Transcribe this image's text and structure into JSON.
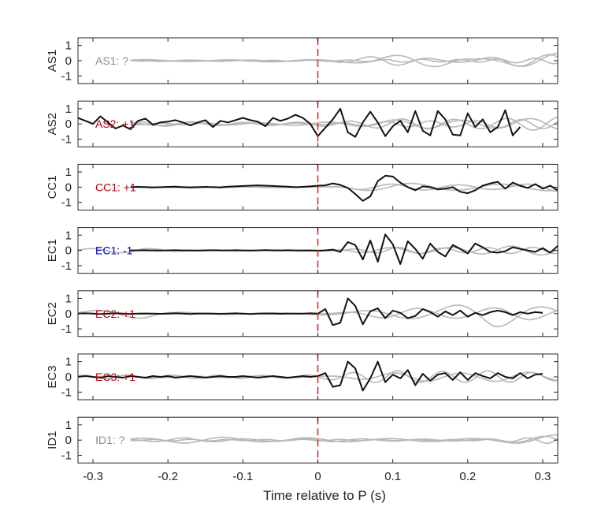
{
  "chart_data": {
    "type": "line",
    "xlabel": "Time relative to P (s)",
    "xlim": [
      -0.32,
      0.32
    ],
    "xticks": [
      -0.3,
      -0.2,
      -0.1,
      0,
      0.1,
      0.2,
      0.3
    ],
    "xtick_labels": [
      "-0.3",
      "-0.2",
      "-0.1",
      "0",
      "0.1",
      "0.2",
      "0.3"
    ],
    "ylim": [
      -1.5,
      1.5
    ],
    "yticks": [
      -1,
      0,
      1
    ],
    "ytick_labels": [
      "-1",
      "0",
      "1"
    ],
    "marker_line": {
      "x": 0,
      "color": "#e41a1c",
      "style": "dashed"
    },
    "colors": {
      "gray": "#b8b8b8",
      "black": "#111111",
      "pos": "#b0000a",
      "neg": "#0000b4",
      "unknown": "#8c8c8c"
    },
    "panels": [
      {
        "ylabel": "AS1",
        "annotation": "AS1: ?",
        "annotation_color": "unknown",
        "waveform": null,
        "gray": [
          {
            "x0": -0.25,
            "amp": [
              0.08,
              0.06,
              0.05,
              0.05,
              0.06,
              0.08,
              0.06,
              0.08,
              0.15,
              0.3,
              0.45,
              0.35,
              0.1,
              0.2,
              0.45,
              0.5
            ],
            "per": 0.11,
            "ph": 0.3
          },
          {
            "x0": -0.25,
            "amp": [
              0.04,
              0.04,
              0.04,
              0.04,
              0.04,
              0.05,
              0.05,
              0.05,
              0.2,
              0.35,
              0.2,
              0.1,
              0.1,
              0.3,
              0.4,
              0.4
            ],
            "per": 0.08,
            "ph": 1.7
          },
          {
            "x0": -0.25,
            "amp": [
              0.03,
              0.03,
              0.03,
              0.03,
              0.03,
              0.03,
              0.03,
              0.03,
              0.05,
              0.08,
              0.1,
              0.08,
              0.08,
              0.12,
              0.15,
              0.2
            ],
            "per": 0.05,
            "ph": 2.9
          }
        ]
      },
      {
        "ylabel": "AS2",
        "annotation": "AS2: +1",
        "annotation_color": "pos",
        "waveform": {
          "x0": -0.32,
          "dx": 0.01,
          "y": [
            0.4,
            0.2,
            0.0,
            0.5,
            0.1,
            -0.3,
            -0.1,
            -0.35,
            0.2,
            0.35,
            -0.05,
            0.1,
            0.15,
            0.25,
            0.1,
            -0.1,
            0.1,
            0.25,
            -0.2,
            0.2,
            0.1,
            0.25,
            0.4,
            0.25,
            0.15,
            -0.15,
            0.4,
            0.2,
            0.35,
            0.6,
            0.4,
            0.0,
            -0.8,
            -0.25,
            0.3,
            1.0,
            -0.55,
            -0.85,
            0.1,
            0.8,
            0.1,
            -0.8,
            -0.15,
            0.2,
            -0.55,
            0.85,
            -0.45,
            -0.75,
            0.85,
            0.3,
            -0.7,
            -0.75,
            0.7,
            -0.2,
            0.3,
            -0.55,
            -0.2,
            0.9,
            -0.75,
            -0.2
          ]
        },
        "gray": [
          {
            "x0": -0.25,
            "amp": [
              0.1,
              0.15,
              0.15,
              0.1,
              0.1,
              0.1,
              0.12,
              0.15,
              0.2,
              0.3,
              0.35,
              0.3,
              0.3,
              0.35,
              0.4,
              0.45
            ],
            "per": 0.07,
            "ph": 0.5
          },
          {
            "x0": -0.25,
            "amp": [
              0.08,
              0.1,
              0.1,
              0.08,
              0.08,
              0.08,
              0.1,
              0.12,
              0.15,
              0.25,
              0.3,
              0.25,
              0.25,
              0.3,
              0.35,
              0.4
            ],
            "per": 0.09,
            "ph": 2.1
          },
          {
            "x0": -0.25,
            "amp": [
              0.05,
              0.06,
              0.06,
              0.05,
              0.05,
              0.05,
              0.05,
              0.06,
              0.1,
              0.15,
              0.2,
              0.2,
              0.2,
              0.25,
              0.3,
              0.3
            ],
            "per": 0.06,
            "ph": 3.6
          }
        ]
      },
      {
        "ylabel": "CC1",
        "annotation": "CC1: +1",
        "annotation_color": "pos",
        "waveform": {
          "x0": -0.25,
          "dx": 0.01,
          "y": [
            0.0,
            0.02,
            0.0,
            -0.02,
            0.0,
            0.02,
            0.03,
            0.0,
            -0.02,
            0.0,
            0.02,
            0.0,
            -0.02,
            0.03,
            0.05,
            0.08,
            0.1,
            0.12,
            0.1,
            0.08,
            0.05,
            0.03,
            0.0,
            0.02,
            0.05,
            0.1,
            0.12,
            0.25,
            0.15,
            -0.05,
            -0.45,
            -0.9,
            -0.6,
            0.4,
            0.75,
            0.7,
            0.3,
            0.0,
            -0.2,
            0.05,
            0.0,
            -0.15,
            -0.1,
            0.0,
            -0.3,
            -0.4,
            -0.2,
            0.1,
            0.25,
            0.35,
            -0.1,
            0.3,
            0.1,
            -0.05,
            0.2,
            -0.1,
            0.1,
            -0.2,
            0.05,
            0.0,
            -0.3,
            -0.15
          ]
        },
        "gray": [
          {
            "x0": -0.25,
            "amp": [
              0.03,
              0.03,
              0.03,
              0.03,
              0.03,
              0.03,
              0.03,
              0.03,
              0.2,
              0.25,
              0.25,
              0.2,
              0.2,
              0.2,
              0.2,
              0.25
            ],
            "per": 0.12,
            "ph": 0.8
          },
          {
            "x0": -0.25,
            "amp": [
              0.02,
              0.02,
              0.02,
              0.02,
              0.02,
              0.02,
              0.02,
              0.02,
              0.15,
              0.2,
              0.2,
              0.15,
              0.15,
              0.15,
              0.2,
              0.3
            ],
            "per": 0.09,
            "ph": 2.4
          }
        ]
      },
      {
        "ylabel": "EC1",
        "annotation": "EC1: -1",
        "annotation_color": "neg",
        "waveform": {
          "x0": -0.25,
          "dx": 0.01,
          "y": [
            0.0,
            0.0,
            0.01,
            0.0,
            -0.01,
            0.0,
            0.01,
            0.0,
            0.0,
            -0.01,
            0.0,
            0.01,
            0.0,
            0.0,
            0.01,
            0.0,
            -0.01,
            0.0,
            0.02,
            0.0,
            0.0,
            0.01,
            0.0,
            -0.01,
            0.0,
            -0.02,
            0.0,
            0.05,
            -0.1,
            0.55,
            0.35,
            -0.6,
            0.65,
            -0.75,
            1.05,
            0.4,
            -0.9,
            0.6,
            0.1,
            -0.55,
            0.45,
            -0.1,
            -0.4,
            0.35,
            0.1,
            -0.2,
            0.45,
            0.2,
            -0.1,
            -0.15,
            -0.05,
            0.2,
            0.1,
            0.0,
            -0.1,
            0.15,
            -0.15,
            0.3,
            0.45,
            -0.25,
            -0.3
          ]
        },
        "gray": [
          {
            "x0": -0.32,
            "amp": [
              0.1,
              0.15,
              0.15,
              0.05,
              0.03,
              0.03,
              0.03,
              0.03,
              0.03,
              0.15,
              0.2,
              0.2,
              0.2,
              0.25,
              0.3,
              0.3
            ],
            "per": 0.08,
            "ph": 0.2
          },
          {
            "x0": -0.25,
            "amp": [
              0.02,
              0.02,
              0.02,
              0.02,
              0.02,
              0.02,
              0.02,
              0.02,
              0.1,
              0.2,
              0.2,
              0.15,
              0.15,
              0.2,
              0.2,
              0.2
            ],
            "per": 0.06,
            "ph": 1.9
          }
        ]
      },
      {
        "ylabel": "EC2",
        "annotation": "EC2: +1",
        "annotation_color": "pos",
        "waveform": {
          "x0": -0.32,
          "dx": 0.01,
          "y": [
            0.0,
            0.02,
            0.0,
            -0.02,
            0.0,
            0.02,
            0.0,
            -0.02,
            0.0,
            0.01,
            0.0,
            -0.01,
            0.0,
            0.02,
            0.0,
            -0.02,
            0.0,
            0.01,
            0.0,
            -0.01,
            0.0,
            0.02,
            0.0,
            -0.02,
            0.0,
            0.01,
            0.0,
            -0.01,
            0.0,
            0.0,
            0.0,
            0.02,
            0.0,
            0.3,
            -0.75,
            -0.6,
            1.0,
            0.5,
            -0.7,
            0.15,
            0.35,
            -0.3,
            0.2,
            0.05,
            -0.3,
            -0.15,
            0.3,
            0.1,
            -0.2,
            0.15,
            -0.1,
            0.2,
            -0.2,
            0.05,
            -0.1,
            0.1,
            0.2,
            0.1,
            -0.1,
            0.1,
            0.0,
            0.1,
            0.05
          ]
        },
        "gray": [
          {
            "x0": -0.32,
            "amp": [
              0.15,
              0.25,
              0.3,
              0.1,
              0.05,
              0.05,
              0.05,
              0.05,
              0.1,
              0.2,
              0.3,
              0.35,
              0.6,
              0.9,
              0.6,
              0.3
            ],
            "per": 0.12,
            "ph": 0.4
          },
          {
            "x0": -0.25,
            "amp": [
              0.02,
              0.02,
              0.02,
              0.02,
              0.02,
              0.02,
              0.02,
              0.02,
              0.15,
              0.3,
              0.35,
              0.3,
              0.3,
              0.4,
              0.4,
              0.3
            ],
            "per": 0.1,
            "ph": 2.6
          }
        ]
      },
      {
        "ylabel": "EC3",
        "annotation": "EC3: +1",
        "annotation_color": "pos",
        "waveform": {
          "x0": -0.32,
          "dx": 0.01,
          "y": [
            0.0,
            0.05,
            0.0,
            -0.05,
            0.05,
            0.0,
            -0.05,
            0.05,
            0.0,
            -0.05,
            0.05,
            0.0,
            0.05,
            -0.05,
            0.0,
            0.05,
            0.0,
            -0.05,
            0.0,
            0.05,
            0.0,
            0.0,
            0.05,
            0.0,
            -0.05,
            0.0,
            0.05,
            0.0,
            -0.05,
            0.0,
            0.05,
            0.0,
            0.05,
            0.25,
            -0.65,
            -0.55,
            1.0,
            0.55,
            -0.9,
            -0.1,
            1.0,
            -0.35,
            0.15,
            -0.1,
            0.45,
            -0.55,
            0.2,
            -0.25,
            0.15,
            0.25,
            -0.2,
            0.3,
            -0.2,
            0.25,
            0.05,
            -0.1,
            0.25,
            0.0,
            -0.1,
            0.25,
            -0.1,
            0.15,
            0.2
          ]
        },
        "gray": [
          {
            "x0": -0.32,
            "amp": [
              0.1,
              0.12,
              0.12,
              0.1,
              0.1,
              0.1,
              0.1,
              0.1,
              0.2,
              0.35,
              0.4,
              0.35,
              0.35,
              0.4,
              0.3,
              0.25
            ],
            "per": 0.06,
            "ph": 0.9
          },
          {
            "x0": -0.25,
            "amp": [
              0.05,
              0.05,
              0.05,
              0.05,
              0.05,
              0.05,
              0.05,
              0.05,
              0.15,
              0.25,
              0.3,
              0.25,
              0.25,
              0.3,
              0.3,
              0.25
            ],
            "per": 0.09,
            "ph": 2.2
          }
        ]
      },
      {
        "ylabel": "ID1",
        "annotation": "ID1: ?",
        "annotation_color": "unknown",
        "waveform": null,
        "gray": [
          {
            "x0": -0.25,
            "amp": [
              0.1,
              0.15,
              0.2,
              0.2,
              0.15,
              0.1,
              0.15,
              0.15,
              0.1,
              0.1,
              0.1,
              0.1,
              0.1,
              0.15,
              0.25,
              0.35
            ],
            "per": 0.11,
            "ph": 0.7
          },
          {
            "x0": -0.25,
            "amp": [
              0.05,
              0.1,
              0.15,
              0.1,
              0.08,
              0.08,
              0.1,
              0.1,
              0.08,
              0.06,
              0.06,
              0.06,
              0.06,
              0.1,
              0.2,
              0.3
            ],
            "per": 0.08,
            "ph": 2.3
          },
          {
            "x0": -0.25,
            "amp": [
              0.03,
              0.04,
              0.05,
              0.05,
              0.04,
              0.04,
              0.05,
              0.05,
              0.04,
              0.03,
              0.03,
              0.03,
              0.04,
              0.08,
              0.15,
              0.25
            ],
            "per": 0.05,
            "ph": 4.1
          }
        ]
      }
    ]
  }
}
